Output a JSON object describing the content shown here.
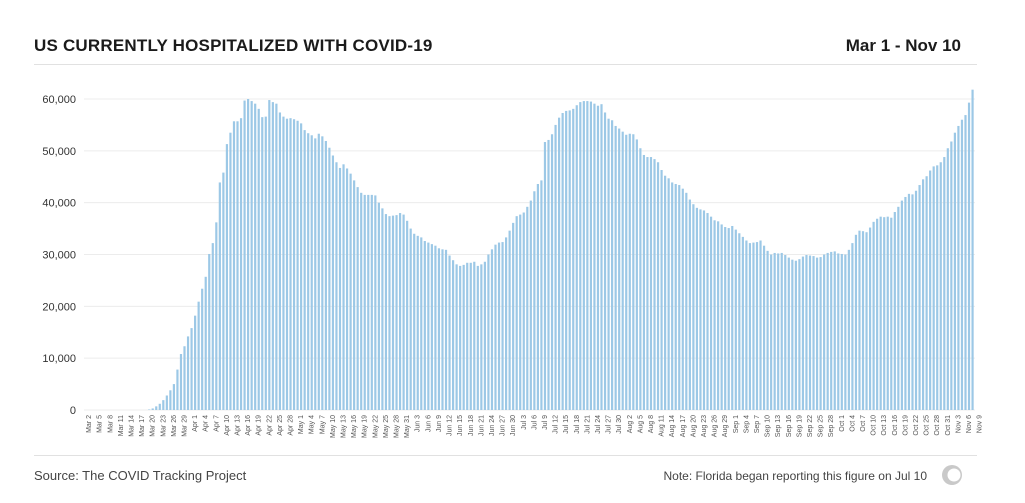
{
  "header": {
    "title": "US CURRENTLY HOSPITALIZED WITH COVID-19",
    "date_range": "Mar 1 - Nov 10"
  },
  "footer": {
    "source": "Source: The COVID Tracking Project",
    "note": "Note: Florida began reporting this figure on Jul 10"
  },
  "colors": {
    "bar": "#9cc8e6",
    "grid": "#ececec",
    "axis_text": "#333333"
  },
  "chart_data": {
    "type": "bar",
    "title": "US CURRENTLY HOSPITALIZED WITH COVID-19",
    "xlabel": "",
    "ylabel": "",
    "ylim": [
      0,
      62000
    ],
    "grid": true,
    "legend": "none",
    "start_date": "2020-03-02",
    "y_ticks": [
      0,
      10000,
      20000,
      30000,
      40000,
      50000,
      60000
    ],
    "y_tick_labels": [
      "0",
      "10,000",
      "20,000",
      "30,000",
      "40,000",
      "50,000",
      "60,000"
    ],
    "x_tick_labels": [
      "Mar 2",
      "Mar 5",
      "Mar 8",
      "Mar 11",
      "Mar 14",
      "Mar 17",
      "Mar 20",
      "Mar 23",
      "Mar 26",
      "Mar 29",
      "Apr 1",
      "Apr 4",
      "Apr 7",
      "Apr 10",
      "Apr 13",
      "Apr 16",
      "Apr 19",
      "Apr 22",
      "Apr 25",
      "Apr 28",
      "May 1",
      "May 4",
      "May 7",
      "May 10",
      "May 13",
      "May 16",
      "May 19",
      "May 22",
      "May 25",
      "May 28",
      "May 31",
      "Jun 3",
      "Jun 6",
      "Jun 9",
      "Jun 12",
      "Jun 15",
      "Jun 18",
      "Jun 21",
      "Jun 24",
      "Jun 27",
      "Jun 30",
      "Jul 3",
      "Jul 6",
      "Jul 9",
      "Jul 12",
      "Jul 15",
      "Jul 18",
      "Jul 21",
      "Jul 24",
      "Jul 27",
      "Jul 30",
      "Aug 2",
      "Aug 5",
      "Aug 8",
      "Aug 11",
      "Aug 14",
      "Aug 17",
      "Aug 20",
      "Aug 23",
      "Aug 26",
      "Aug 29",
      "Sep 1",
      "Sep 4",
      "Sep 7",
      "Sep 10",
      "Sep 13",
      "Sep 16",
      "Sep 19",
      "Sep 22",
      "Sep 25",
      "Sep 28",
      "Oct 1",
      "Oct 4",
      "Oct 7",
      "Oct 10",
      "Oct 13",
      "Oct 16",
      "Oct 19",
      "Oct 22",
      "Oct 25",
      "Oct 28",
      "Oct 31",
      "Nov 3",
      "Nov 6",
      "Nov 9"
    ],
    "values": [
      0,
      0,
      0,
      0,
      0,
      0,
      0,
      0,
      0,
      0,
      0,
      0,
      0,
      0,
      0,
      0,
      0,
      100,
      300,
      700,
      1200,
      1900,
      2800,
      3800,
      5000,
      7800,
      10800,
      12300,
      14200,
      15800,
      18200,
      20900,
      23400,
      25700,
      30100,
      32200,
      36200,
      43900,
      45800,
      51300,
      53500,
      55700,
      55700,
      56300,
      59700,
      60000,
      59600,
      59100,
      58100,
      56500,
      56600,
      59800,
      59400,
      59100,
      57400,
      56600,
      56200,
      56300,
      56100,
      55800,
      55300,
      54000,
      53400,
      53000,
      52400,
      53300,
      52800,
      51900,
      50600,
      49100,
      47800,
      46700,
      47400,
      46600,
      45600,
      44300,
      43000,
      41900,
      41500,
      41500,
      41500,
      41400,
      40000,
      38900,
      37800,
      37400,
      37500,
      37600,
      38000,
      37700,
      36500,
      35000,
      34000,
      33600,
      33300,
      32600,
      32300,
      32000,
      31700,
      31200,
      31000,
      30900,
      29800,
      28900,
      28100,
      27800,
      28000,
      28400,
      28400,
      28600,
      27800,
      28100,
      28600,
      30000,
      31000,
      31900,
      32300,
      32400,
      33300,
      34600,
      36100,
      37400,
      37700,
      38100,
      39200,
      40400,
      42200,
      43600,
      44300,
      51700,
      52100,
      53200,
      55000,
      56400,
      57300,
      57700,
      57800,
      58100,
      58800,
      59400,
      59600,
      59600,
      59500,
      59100,
      58700,
      59000,
      57400,
      56200,
      55900,
      54800,
      54300,
      53700,
      53100,
      53300,
      53200,
      52200,
      50500,
      49200,
      48800,
      48800,
      48400,
      47800,
      46300,
      45200,
      44700,
      43900,
      43600,
      43400,
      42700,
      41900,
      40600,
      39700,
      39000,
      38700,
      38500,
      38000,
      37300,
      36600,
      36400,
      35800,
      35300,
      35100,
      35500,
      34800,
      34100,
      33400,
      32700,
      32200,
      32300,
      32400,
      32700,
      31700,
      30700,
      30000,
      30300,
      30200,
      30300,
      29900,
      29400,
      29000,
      28800,
      29100,
      29600,
      29900,
      29800,
      29700,
      29400,
      29500,
      30000,
      30300,
      30500,
      30600,
      30200,
      30100,
      30000,
      30900,
      32200,
      33800,
      34600,
      34500,
      34300,
      35200,
      36300,
      36900,
      37300,
      37200,
      37300,
      37100,
      38200,
      39200,
      40400,
      41100,
      41700,
      41600,
      42300,
      43400,
      44500,
      45100,
      46200,
      47000,
      47200,
      47800,
      48800,
      50500,
      51800,
      53500,
      54800,
      56000,
      56900,
      59300,
      61800
    ]
  }
}
